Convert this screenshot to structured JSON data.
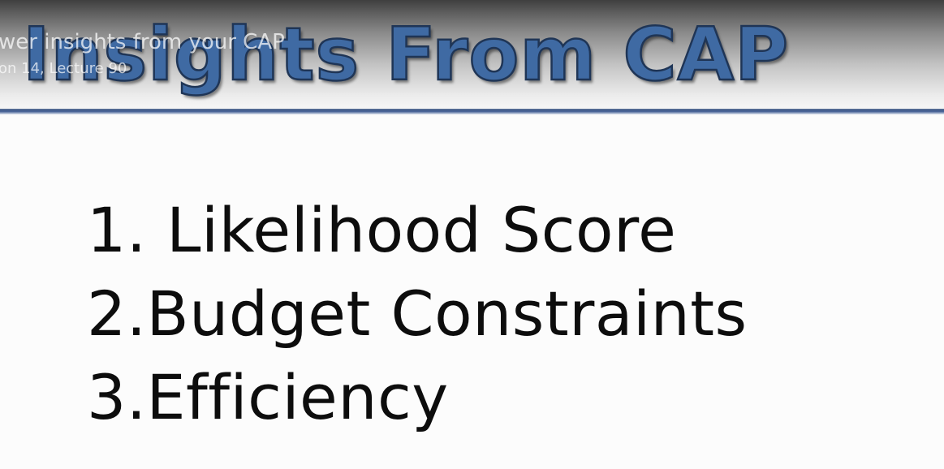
{
  "slide": {
    "title": "Insights From CAP",
    "points": [
      "1. Likelihood Score",
      "2.Budget Constraints",
      "3.Efficiency"
    ]
  },
  "video_overlay": {
    "title": "wer insights from your CAP",
    "subtitle": "on 14, Lecture 90"
  },
  "colors": {
    "title_fill": "#3f6aa3",
    "title_outline": "#1f3556",
    "rule": "#3d5a8f",
    "text": "#0d0d0d"
  }
}
